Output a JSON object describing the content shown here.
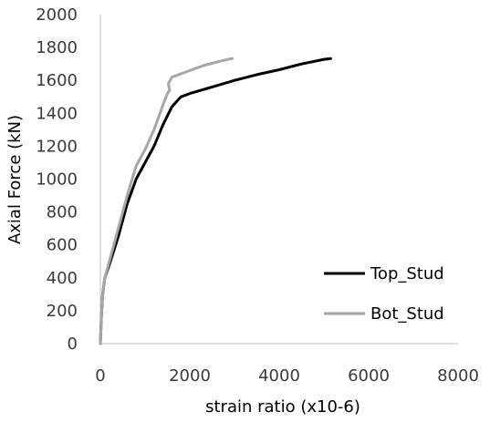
{
  "chart_data": {
    "type": "line",
    "title": "",
    "xlabel": "strain ratio (x10-6)",
    "ylabel": "Axial Force (kN)",
    "xlim": [
      0,
      8000
    ],
    "ylim": [
      0,
      2000
    ],
    "xticks": [
      0,
      2000,
      4000,
      6000,
      8000
    ],
    "yticks": [
      0,
      200,
      400,
      600,
      800,
      1000,
      1200,
      1400,
      1600,
      1800,
      2000
    ],
    "grid": false,
    "legend_position": "right",
    "series": [
      {
        "name": "Top_Stud",
        "color": "#000000",
        "points": [
          [
            0,
            0
          ],
          [
            20,
            150
          ],
          [
            50,
            300
          ],
          [
            100,
            400
          ],
          [
            200,
            480
          ],
          [
            400,
            650
          ],
          [
            600,
            850
          ],
          [
            800,
            1000
          ],
          [
            1000,
            1100
          ],
          [
            1200,
            1200
          ],
          [
            1400,
            1330
          ],
          [
            1600,
            1440
          ],
          [
            1800,
            1500
          ],
          [
            2000,
            1520
          ],
          [
            2500,
            1560
          ],
          [
            3000,
            1600
          ],
          [
            3500,
            1635
          ],
          [
            4000,
            1665
          ],
          [
            4500,
            1700
          ],
          [
            5000,
            1728
          ],
          [
            5150,
            1733
          ]
        ]
      },
      {
        "name": "Bot_Stud",
        "color": "#a6a6a6",
        "points": [
          [
            0,
            0
          ],
          [
            20,
            150
          ],
          [
            50,
            300
          ],
          [
            100,
            400
          ],
          [
            200,
            500
          ],
          [
            400,
            700
          ],
          [
            600,
            900
          ],
          [
            800,
            1080
          ],
          [
            1000,
            1180
          ],
          [
            1200,
            1300
          ],
          [
            1400,
            1450
          ],
          [
            1500,
            1520
          ],
          [
            1550,
            1540
          ],
          [
            1520,
            1580
          ],
          [
            1600,
            1620
          ],
          [
            1800,
            1640
          ],
          [
            2000,
            1660
          ],
          [
            2300,
            1690
          ],
          [
            2700,
            1718
          ],
          [
            2950,
            1733
          ]
        ]
      }
    ]
  }
}
